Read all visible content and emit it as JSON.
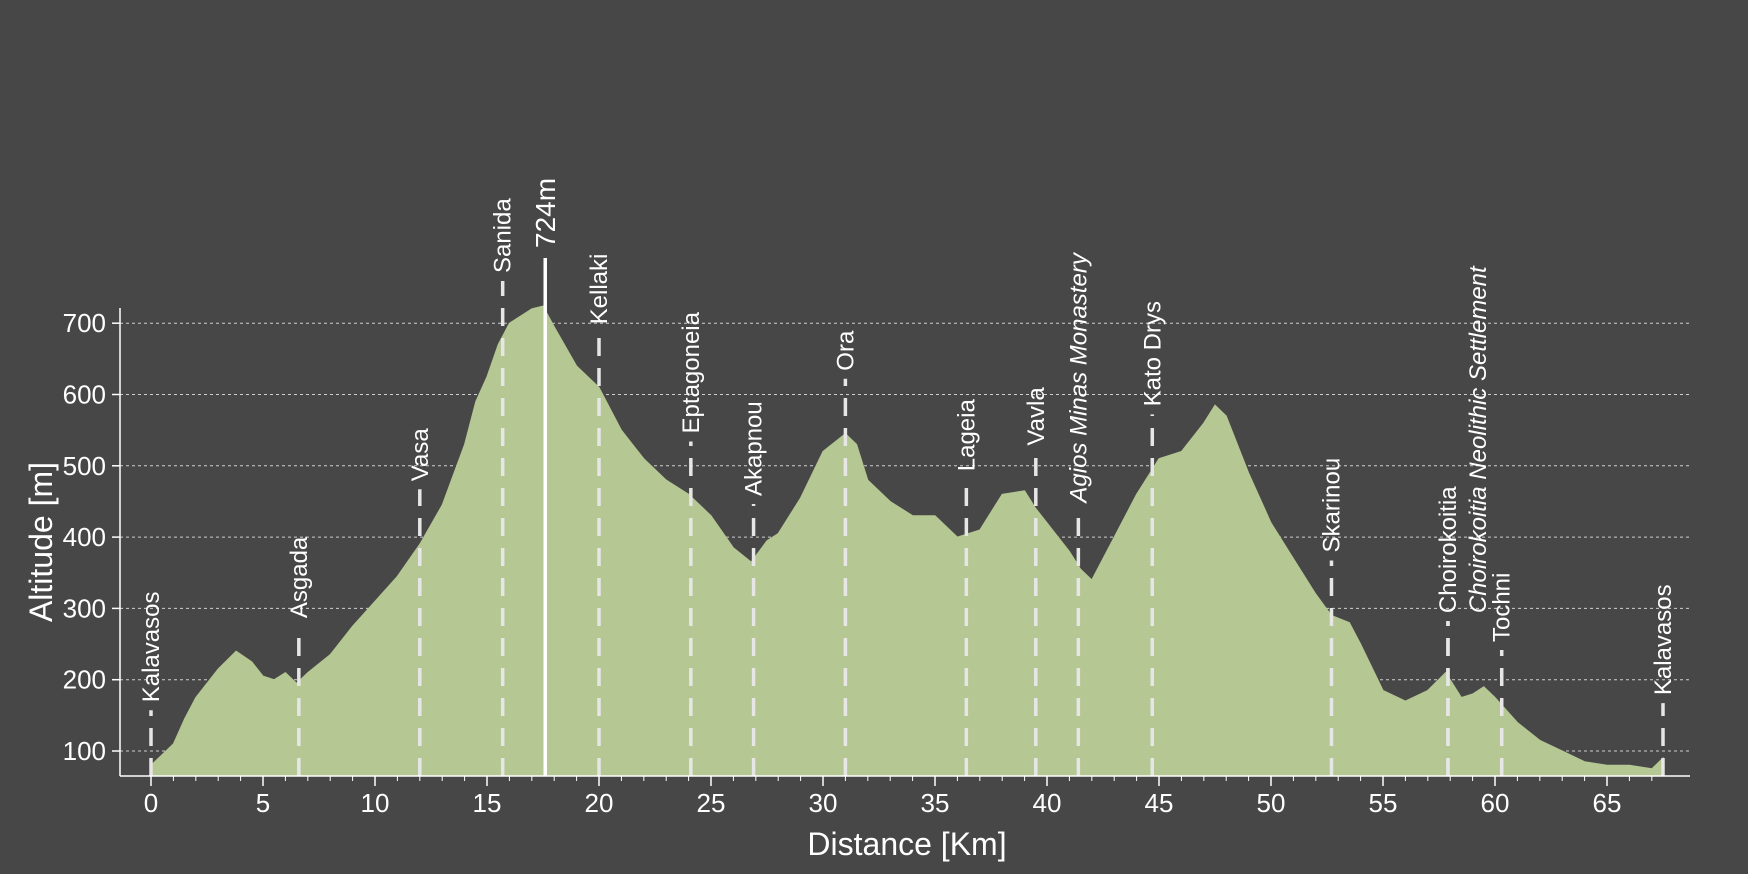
{
  "chart_data": {
    "type": "area",
    "xlabel": "Distance [Km]",
    "ylabel": "Altitude [m]",
    "xlim": [
      0,
      68
    ],
    "ylim": [
      70,
      720
    ],
    "x_ticks": [
      0,
      5,
      10,
      15,
      20,
      25,
      30,
      35,
      40,
      45,
      50,
      55,
      60,
      65
    ],
    "y_ticks": [
      100,
      200,
      300,
      400,
      500,
      600,
      700
    ],
    "grid": "horizontal-dotted",
    "colors": {
      "background": "#474747",
      "fill": "#b5c793",
      "marker": "#e6e6e6"
    },
    "profile": {
      "x": [
        0,
        0.5,
        1,
        1.5,
        2,
        3,
        3.8,
        4.5,
        5,
        5.5,
        6,
        6.5,
        7,
        8,
        9,
        10,
        11,
        12,
        13,
        14,
        14.5,
        15,
        15.5,
        16,
        16.5,
        17,
        17.5,
        18,
        19,
        20,
        21,
        22,
        23,
        24,
        25,
        26,
        26.8,
        27.5,
        28,
        29,
        30,
        31,
        31.5,
        32,
        33,
        34,
        35,
        36,
        37,
        38,
        39,
        39.5,
        40,
        41,
        41.5,
        42,
        43,
        44,
        45,
        46,
        47,
        47.5,
        48,
        49,
        50,
        51,
        52,
        52.7,
        53.5,
        54,
        55,
        56,
        57,
        57.8,
        58.5,
        59,
        59.5,
        60,
        61,
        62,
        63,
        64,
        65,
        66,
        67,
        67.5
      ],
      "y": [
        80,
        95,
        110,
        145,
        175,
        215,
        240,
        225,
        205,
        200,
        210,
        195,
        210,
        235,
        275,
        310,
        345,
        390,
        445,
        530,
        590,
        625,
        670,
        700,
        710,
        720,
        724,
        695,
        640,
        610,
        550,
        510,
        480,
        460,
        430,
        385,
        365,
        395,
        405,
        455,
        520,
        545,
        530,
        480,
        450,
        430,
        430,
        400,
        410,
        460,
        465,
        440,
        420,
        380,
        355,
        340,
        400,
        460,
        510,
        520,
        560,
        585,
        570,
        490,
        420,
        370,
        320,
        290,
        280,
        250,
        185,
        170,
        185,
        210,
        175,
        180,
        190,
        175,
        140,
        115,
        100,
        85,
        80,
        80,
        75,
        90
      ]
    },
    "waypoints": [
      {
        "name": "Kalavasos",
        "km": 0.0,
        "italic": false
      },
      {
        "name": "Asgada",
        "km": 6.6,
        "italic": false
      },
      {
        "name": "Vasa",
        "km": 12.0,
        "italic": false
      },
      {
        "name": "Sanida",
        "km": 15.7,
        "italic": false
      },
      {
        "name": "Kellaki",
        "km": 20.0,
        "italic": false
      },
      {
        "name": "Eptagoneia",
        "km": 24.1,
        "italic": false
      },
      {
        "name": "Akapnou",
        "km": 26.9,
        "italic": false
      },
      {
        "name": "Ora",
        "km": 31.0,
        "italic": false
      },
      {
        "name": "Lageia",
        "km": 36.4,
        "italic": false
      },
      {
        "name": "Vavla",
        "km": 39.5,
        "italic": false
      },
      {
        "name": "Agios Minas Monastery",
        "km": 41.4,
        "italic": true
      },
      {
        "name": "Kato Drys",
        "km": 44.7,
        "italic": false
      },
      {
        "name": "Skarinou",
        "km": 52.7,
        "italic": false
      },
      {
        "name": "Choirokoitia",
        "km": 57.9,
        "italic": false
      },
      {
        "name": "Choirokoitia Neolithic Settlement",
        "km": 57.9,
        "italic": true
      },
      {
        "name": "Tochni",
        "km": 60.3,
        "italic": false
      },
      {
        "name": "Kalavasos",
        "km": 67.5,
        "italic": false
      }
    ],
    "peak": {
      "label": "724m",
      "km": 17.6,
      "altitude": 724
    }
  }
}
